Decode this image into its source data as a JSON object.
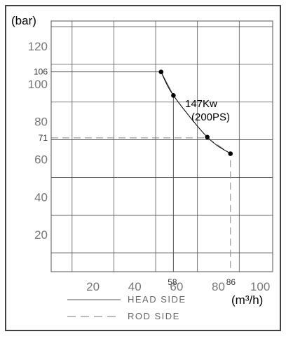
{
  "chart_data": {
    "type": "line",
    "ylabel": "(bar)",
    "xlabel": "(m³/h)",
    "xlim": [
      0,
      106
    ],
    "ylim": [
      0,
      133
    ],
    "grid": true,
    "x_ticks": [
      {
        "value": 20,
        "label": "20",
        "size": "major"
      },
      {
        "value": 40,
        "label": "40",
        "size": "major"
      },
      {
        "value": 58,
        "label": "58",
        "size": "minor"
      },
      {
        "value": 60,
        "label": "60",
        "size": "major"
      },
      {
        "value": 80,
        "label": "80",
        "size": "major"
      },
      {
        "value": 86,
        "label": "86",
        "size": "minor"
      },
      {
        "value": 100,
        "label": "100",
        "size": "major"
      }
    ],
    "y_ticks": [
      {
        "value": 20,
        "label": "20",
        "size": "major"
      },
      {
        "value": 40,
        "label": "40",
        "size": "major"
      },
      {
        "value": 60,
        "label": "60",
        "size": "major"
      },
      {
        "value": 71,
        "label": "71",
        "size": "minor"
      },
      {
        "value": 80,
        "label": "80",
        "size": "major"
      },
      {
        "value": 100,
        "label": "100",
        "size": "major"
      },
      {
        "value": 106,
        "label": "106",
        "size": "minor"
      },
      {
        "value": 120,
        "label": "120",
        "size": "major"
      }
    ],
    "grid_x": [
      10,
      30,
      50,
      70,
      90,
      106
    ],
    "grid_y": [
      10,
      30,
      50,
      70,
      90,
      110,
      130
    ],
    "curve": {
      "points": [
        [
          52.6,
          106
        ],
        [
          58.5,
          93.5
        ],
        [
          74.7,
          71.4
        ],
        [
          85.8,
          62.6
        ]
      ],
      "color": "#000000"
    },
    "series": [
      {
        "name": "HEAD SIDE",
        "style": "solid",
        "color": "#555555",
        "points": [
          [
            0,
            106
          ],
          [
            52.6,
            106
          ],
          [
            58.5,
            93.5
          ],
          [
            58.5,
            0
          ]
        ]
      },
      {
        "name": "ROD SIDE",
        "style": "dashed",
        "color": "#888888",
        "points": [
          [
            0,
            71
          ],
          [
            74.7,
            71
          ],
          [
            85.8,
            62.6
          ],
          [
            85.8,
            0
          ]
        ]
      }
    ],
    "annotations": [
      "147Kw",
      "(200PS)"
    ],
    "legend": {
      "position": "bottom-center",
      "entries": [
        {
          "label": "HEAD SIDE",
          "style": "solid"
        },
        {
          "label": "ROD SIDE",
          "style": "dashed"
        }
      ]
    }
  }
}
